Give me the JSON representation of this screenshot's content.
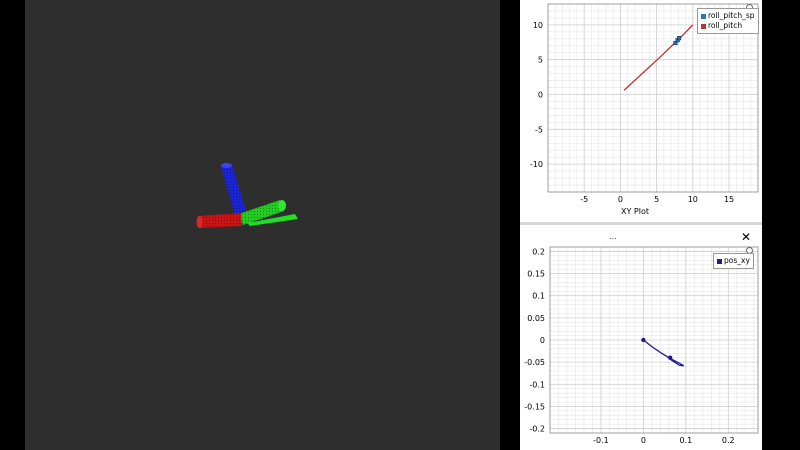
{
  "colors": {
    "viewport_bg": "#2e2e2e",
    "axis_red": "#c81414",
    "axis_green": "#22dd22",
    "axis_blue": "#1a24d6",
    "roll_pitch_sp": "#2a78b5",
    "roll_pitch": "#b83232",
    "pos_xy": "#1b1f8a"
  },
  "top_plot": {
    "xlabel": "XY Plot",
    "legend": [
      {
        "name": "roll_pitch_sp",
        "color": "#2a78b5"
      },
      {
        "name": "roll_pitch",
        "color": "#b83232"
      }
    ]
  },
  "bottom_plot": {
    "title_dots": "...",
    "close_glyph": "✕",
    "legend": [
      {
        "name": "pos_xy",
        "color": "#1b1f8a"
      }
    ]
  },
  "chart_data": [
    {
      "type": "line",
      "xlim": [
        -10,
        19
      ],
      "ylim": [
        -14,
        13
      ],
      "grid": true,
      "legend_position": "top-right",
      "x_ticks": [
        -5,
        0,
        5,
        10,
        15
      ],
      "x_tick_labels": [
        "-5",
        "0",
        "5",
        "10",
        "15"
      ],
      "y_ticks": [
        10,
        5,
        0,
        -5,
        -10
      ],
      "y_tick_labels": [
        "10",
        "5",
        "0",
        "-5",
        "-10"
      ],
      "xlabel": "XY Plot",
      "series": [
        {
          "name": "roll_pitch_sp",
          "x": [
            7.6,
            7.9,
            8.1
          ],
          "y": [
            7.4,
            7.8,
            8.1
          ]
        },
        {
          "name": "roll_pitch",
          "x": [
            0.5,
            3.0,
            5.5,
            7.5,
            8.5,
            10.0
          ],
          "y": [
            0.6,
            3.0,
            5.4,
            7.4,
            8.4,
            10.0
          ]
        }
      ]
    },
    {
      "type": "line",
      "xlim": [
        -0.22,
        0.27
      ],
      "ylim": [
        -0.21,
        0.21
      ],
      "grid": true,
      "legend_position": "top-right",
      "x_ticks": [
        -0.1,
        0,
        0.1,
        0.2
      ],
      "x_tick_labels": [
        "-0.1",
        "0",
        "0.1",
        "0.2"
      ],
      "y_ticks": [
        0.2,
        0.15,
        0.1,
        0.05,
        0,
        -0.05,
        -0.1,
        -0.15,
        -0.2
      ],
      "y_tick_labels": [
        "0.2",
        "0.15",
        "0.1",
        "0.05",
        "0",
        "-0.05",
        "-0.1",
        "-0.15",
        "-0.2"
      ],
      "series": [
        {
          "name": "pos_xy",
          "x": [
            0.0,
            0.02,
            0.04,
            0.06,
            0.08,
            0.095,
            0.085,
            0.065,
            0.06
          ],
          "y": [
            0.0,
            -0.015,
            -0.028,
            -0.04,
            -0.05,
            -0.058,
            -0.057,
            -0.045,
            -0.04
          ]
        }
      ],
      "markers": [
        {
          "x": 0.0,
          "y": 0.0
        },
        {
          "x": 0.063,
          "y": -0.04
        }
      ]
    }
  ]
}
